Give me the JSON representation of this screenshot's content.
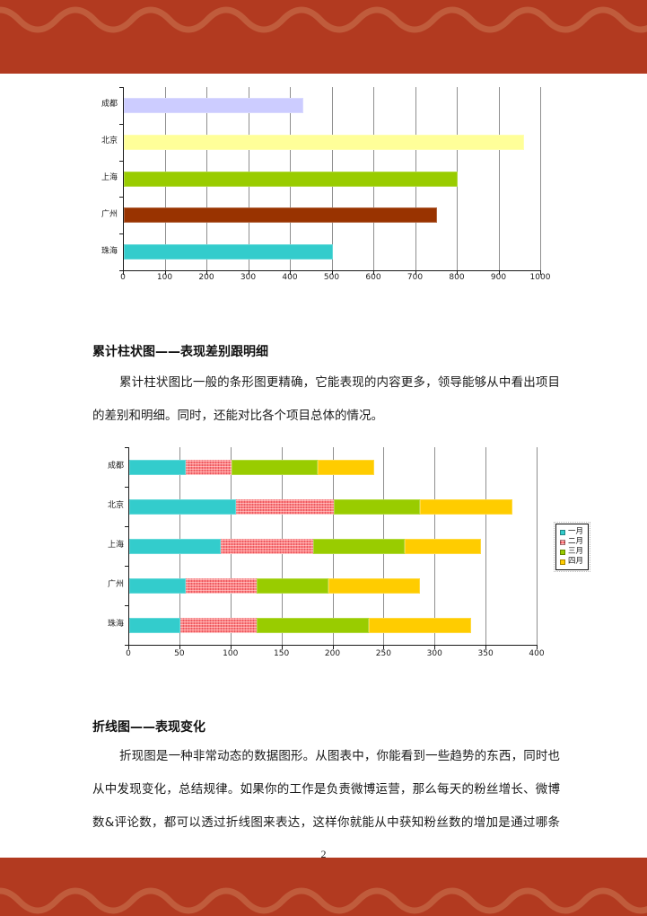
{
  "page": {
    "number": "2",
    "band_color": "#B23A20",
    "band_wave_color": "#CE7E58"
  },
  "sections": {
    "stacked_heading": "累计柱状图——表现差别跟明细",
    "stacked_para": [
      "累计柱状图比一般的条形图更精确，它能表现的内容更多，领导能够从中看出项目之间",
      "的差别和明细。同时，还能对比各个项目总体的情况。"
    ],
    "line_heading": "折线图——表现变化",
    "line_para": [
      "折现图是一种非常动态的数据图形。从图表中，你能看到一些趋势的东西，同时也可以",
      "从中发现变化，总结规律。如果你的工作是负责微博运营，那么每天的粉丝增长、微博转发",
      "数&评论数，都可以透过折线图来表达，这样你就能从中获知粉丝数的增加是通过哪条微博"
    ]
  },
  "chart_data": [
    {
      "type": "bar",
      "orientation": "horizontal",
      "title": "",
      "xlabel": "",
      "ylabel": "",
      "categories": [
        "成都",
        "北京",
        "上海",
        "广州",
        "珠海"
      ],
      "values": [
        430,
        960,
        800,
        750,
        500
      ],
      "bar_colors": [
        "#CCCCFF",
        "#FFFF99",
        "#99CC00",
        "#993300",
        "#33CCCC"
      ],
      "xlim": [
        0,
        1000
      ],
      "xticks": [
        0,
        100,
        200,
        300,
        400,
        500,
        600,
        700,
        800,
        900,
        1000
      ],
      "grid": true,
      "legend": false
    },
    {
      "type": "bar",
      "stacked": true,
      "orientation": "horizontal",
      "title": "",
      "xlabel": "",
      "ylabel": "",
      "categories": [
        "成都",
        "北京",
        "上海",
        "广州",
        "珠海"
      ],
      "series": [
        {
          "name": "一月",
          "color": "#33CCCC",
          "values": [
            55,
            105,
            90,
            55,
            50
          ]
        },
        {
          "name": "二月",
          "color": "#FF8080",
          "pattern": "crosshatch",
          "values": [
            45,
            95,
            90,
            70,
            75
          ]
        },
        {
          "name": "三月",
          "color": "#99CC00",
          "values": [
            85,
            85,
            90,
            70,
            110
          ]
        },
        {
          "name": "四月",
          "color": "#FFCC00",
          "values": [
            55,
            90,
            75,
            90,
            100
          ]
        }
      ],
      "xlim": [
        0,
        400
      ],
      "xticks": [
        0,
        50,
        100,
        150,
        200,
        250,
        300,
        350,
        400
      ],
      "grid": true,
      "legend_position": "right"
    }
  ]
}
